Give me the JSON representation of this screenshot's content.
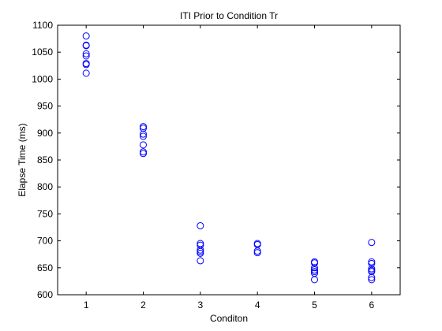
{
  "chart_data": {
    "type": "scatter",
    "title": "ITI Prior to Condition Tr",
    "xlabel": "Conditon",
    "ylabel": "Elapse Time (ms)",
    "xlim": [
      0.5,
      6.5
    ],
    "ylim": [
      600,
      1100
    ],
    "xticks": [
      1,
      2,
      3,
      4,
      5,
      6
    ],
    "yticks": [
      600,
      650,
      700,
      750,
      800,
      850,
      900,
      950,
      1000,
      1050,
      1100
    ],
    "grid": false,
    "legend": "none",
    "marker": "open-circle",
    "marker_color": "#0000ff",
    "points": [
      {
        "x": 1,
        "y": 1080
      },
      {
        "x": 1,
        "y": 1063
      },
      {
        "x": 1,
        "y": 1062
      },
      {
        "x": 1,
        "y": 1047
      },
      {
        "x": 1,
        "y": 1043
      },
      {
        "x": 1,
        "y": 1029
      },
      {
        "x": 1,
        "y": 1027
      },
      {
        "x": 1,
        "y": 1011
      },
      {
        "x": 2,
        "y": 912
      },
      {
        "x": 2,
        "y": 909
      },
      {
        "x": 2,
        "y": 898
      },
      {
        "x": 2,
        "y": 894
      },
      {
        "x": 2,
        "y": 878
      },
      {
        "x": 2,
        "y": 865
      },
      {
        "x": 2,
        "y": 862
      },
      {
        "x": 3,
        "y": 728
      },
      {
        "x": 3,
        "y": 695
      },
      {
        "x": 3,
        "y": 692
      },
      {
        "x": 3,
        "y": 683
      },
      {
        "x": 3,
        "y": 680
      },
      {
        "x": 3,
        "y": 677
      },
      {
        "x": 3,
        "y": 663
      },
      {
        "x": 4,
        "y": 695
      },
      {
        "x": 4,
        "y": 693
      },
      {
        "x": 4,
        "y": 681
      },
      {
        "x": 4,
        "y": 678
      },
      {
        "x": 5,
        "y": 661
      },
      {
        "x": 5,
        "y": 659
      },
      {
        "x": 5,
        "y": 650
      },
      {
        "x": 5,
        "y": 646
      },
      {
        "x": 5,
        "y": 643
      },
      {
        "x": 5,
        "y": 640
      },
      {
        "x": 5,
        "y": 628
      },
      {
        "x": 6,
        "y": 697
      },
      {
        "x": 6,
        "y": 661
      },
      {
        "x": 6,
        "y": 658
      },
      {
        "x": 6,
        "y": 648
      },
      {
        "x": 6,
        "y": 645
      },
      {
        "x": 6,
        "y": 643
      },
      {
        "x": 6,
        "y": 632
      },
      {
        "x": 6,
        "y": 628
      }
    ]
  }
}
